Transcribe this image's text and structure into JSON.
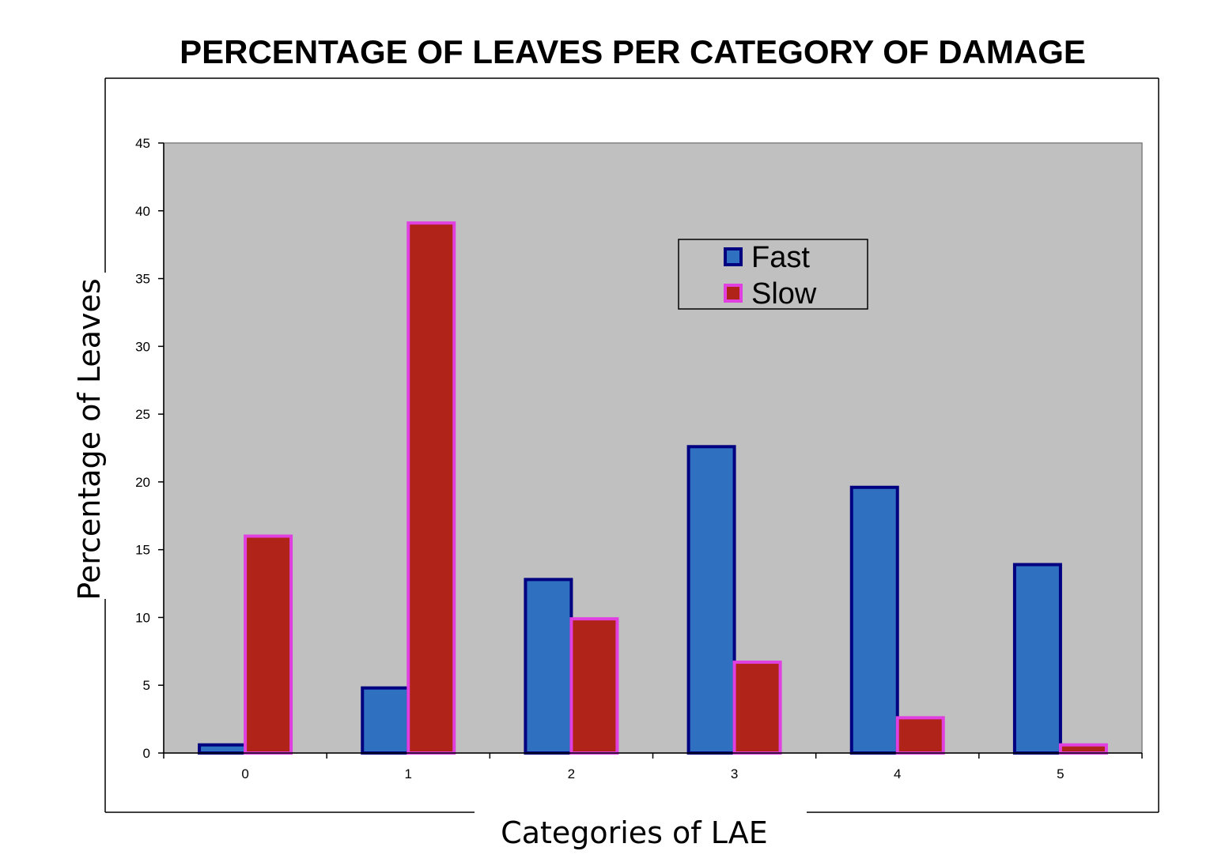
{
  "chart_data": {
    "type": "bar",
    "title": "PERCENTAGE OF LEAVES PER CATEGORY OF DAMAGE",
    "xlabel": "Categories of LAE",
    "ylabel": "Percentage of Leaves",
    "categories": [
      "0",
      "1",
      "2",
      "3",
      "4",
      "5"
    ],
    "y_ticks": [
      "0",
      "5",
      "10",
      "15",
      "20",
      "25",
      "30",
      "35",
      "40",
      "45"
    ],
    "ylim": [
      0,
      45
    ],
    "grid": false,
    "legend_position": "top-right",
    "plot_background": "#c0c0c0",
    "series": [
      {
        "name": "Fast",
        "values": [
          0.6,
          4.8,
          12.8,
          22.6,
          19.6,
          13.9
        ],
        "fill": "#3070c0",
        "stroke": "#000080"
      },
      {
        "name": "Slow",
        "values": [
          16.0,
          39.1,
          9.9,
          6.7,
          2.6,
          0.6
        ],
        "fill": "#b02318",
        "stroke": "#e040e0"
      }
    ]
  }
}
